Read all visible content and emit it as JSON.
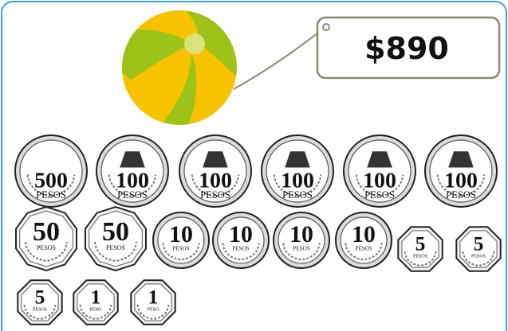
{
  "price_tag": "$890",
  "coins": [
    {
      "value": 500,
      "unit": "PESOS"
    },
    {
      "value": 100,
      "unit": "PESOS"
    },
    {
      "value": 100,
      "unit": "PESOS"
    },
    {
      "value": 100,
      "unit": "PESOS"
    },
    {
      "value": 100,
      "unit": "PESOS"
    },
    {
      "value": 100,
      "unit": "PESOS"
    },
    {
      "value": 50,
      "unit": "PESOS"
    },
    {
      "value": 50,
      "unit": "PESOS"
    },
    {
      "value": 10,
      "unit": "PESOS"
    },
    {
      "value": 10,
      "unit": "PESOS"
    },
    {
      "value": 10,
      "unit": "PESOS"
    },
    {
      "value": 10,
      "unit": "PESOS"
    },
    {
      "value": 5,
      "unit": "PESOS"
    },
    {
      "value": 5,
      "unit": "PESOS"
    },
    {
      "value": 5,
      "unit": "PESOS"
    },
    {
      "value": 1,
      "unit": "PESO"
    },
    {
      "value": 1,
      "unit": "PESO"
    }
  ]
}
